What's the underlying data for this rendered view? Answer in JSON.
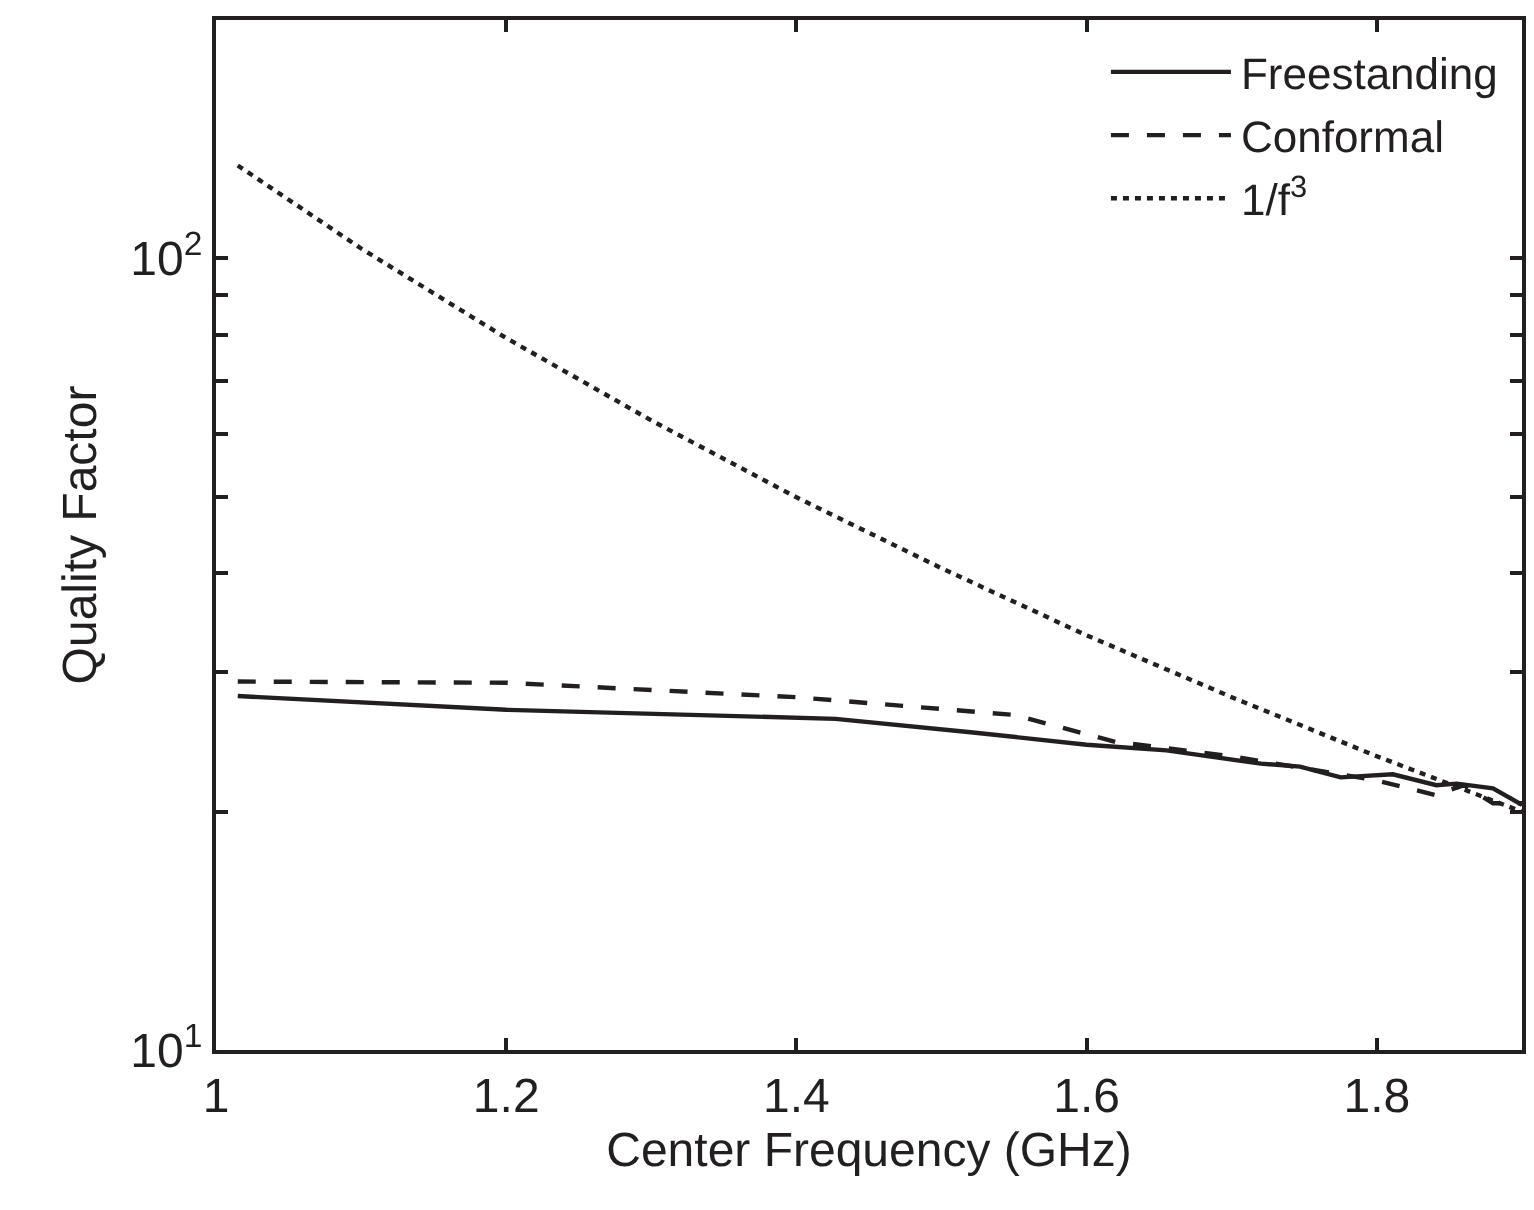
{
  "chart_data": {
    "type": "line",
    "xlabel": "Center Frequency (GHz)",
    "ylabel": "Quality Factor",
    "log": "y",
    "legend": "top right",
    "xlim": [
      1,
      1.9
    ],
    "xticks": [
      1,
      1.2,
      1.4,
      1.6,
      1.8
    ],
    "ylim": [
      10,
      200
    ],
    "yticks": [
      {
        "value": 10,
        "label": "10$^{1}$"
      },
      {
        "value": 20,
        "label": null
      },
      {
        "value": 30,
        "label": null
      },
      {
        "value": 40,
        "label": null
      },
      {
        "value": 50,
        "label": null
      },
      {
        "value": 60,
        "label": null
      },
      {
        "value": 70,
        "label": null
      },
      {
        "value": 80,
        "label": null
      },
      {
        "value": 90,
        "label": null
      },
      {
        "value": 100,
        "label": "10$^{2}$"
      },
      {
        "value": 200,
        "label": null
      }
    ],
    "series": [
      {
        "name": "Freestanding",
        "color": "#231f20",
        "line_style": "solid",
        "x": [
          1.015,
          1.2,
          1.427,
          1.52,
          1.6,
          1.655,
          1.72,
          1.747,
          1.775,
          1.811,
          1.841,
          1.855,
          1.88,
          1.9
        ],
        "values": [
          28.0,
          26.9,
          26.2,
          25.2,
          24.3,
          23.9,
          23.0,
          22.8,
          22.1,
          22.3,
          21.6,
          21.7,
          21.4,
          20.4
        ]
      },
      {
        "name": "Conformal",
        "color": "#231f20",
        "line_style": "dashed",
        "x": [
          1.015,
          1.2,
          1.4,
          1.55,
          1.62,
          1.7,
          1.8,
          1.84,
          1.86,
          1.88,
          1.9
        ],
        "values": [
          29.2,
          29.1,
          27.9,
          26.5,
          24.5,
          23.5,
          21.9,
          21.0,
          21.6,
          20.5,
          20.5
        ]
      },
      {
        "name": "1/f$^{3}$",
        "color": "#231f20",
        "line_style": "dotted",
        "x": [
          1.015,
          1.1,
          1.2,
          1.3,
          1.4,
          1.5,
          1.6,
          1.7,
          1.8,
          1.9
        ],
        "values": [
          131.0,
          102.9,
          79.3,
          62.4,
          49.9,
          40.6,
          33.4,
          27.9,
          23.5,
          20.0
        ]
      }
    ]
  }
}
